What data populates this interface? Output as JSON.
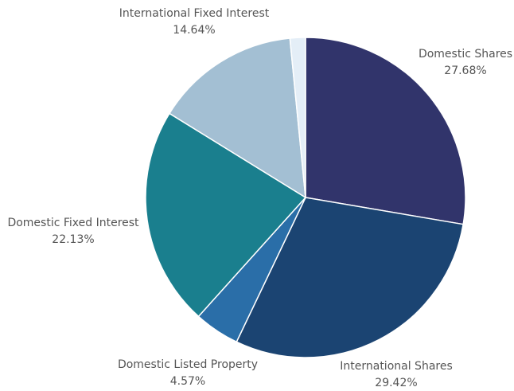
{
  "chart_data": {
    "type": "pie",
    "categories": [
      "Domestic Shares",
      "International Shares",
      "Domestic Listed Property",
      "Domestic Fixed Interest",
      "International Fixed Interest",
      null
    ],
    "values": [
      27.68,
      29.42,
      4.57,
      22.13,
      14.64,
      1.56
    ],
    "value_labels": [
      "27.68%",
      "29.42%",
      "4.57%",
      "22.13%",
      "14.64%",
      null
    ],
    "colors": [
      "#31346b",
      "#1b4472",
      "#2a6ea8",
      "#1a7f8e",
      "#a3bfd3",
      "#e4eef7"
    ]
  }
}
